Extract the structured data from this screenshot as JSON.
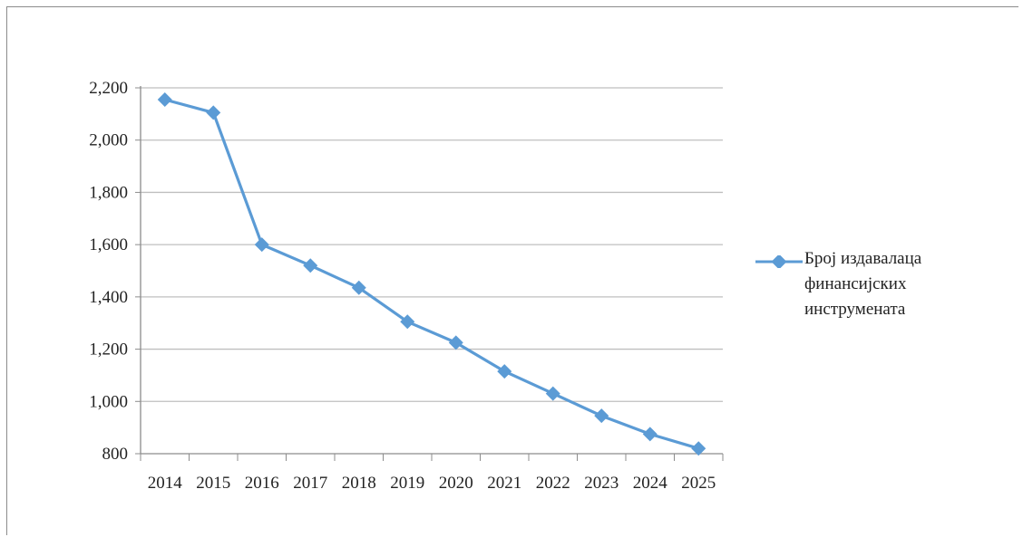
{
  "colors": {
    "series": "#5b9bd5",
    "grid": "#bfbfbf",
    "axis": "#8c8c8c"
  },
  "chart_data": {
    "type": "line",
    "x": [
      "2014",
      "2015",
      "2016",
      "2017",
      "2018",
      "2019",
      "2020",
      "2021",
      "2022",
      "2023",
      "2024",
      "2025"
    ],
    "series": [
      {
        "name": "Број издавалаца финансијских инструмената",
        "marker": "diamond",
        "values": [
          2155,
          2105,
          1600,
          1520,
          1435,
          1305,
          1225,
          1115,
          1030,
          945,
          875,
          820
        ]
      }
    ],
    "ylim": [
      800,
      2200
    ],
    "yticks": [
      800,
      1000,
      1200,
      1400,
      1600,
      1800,
      2000,
      2200
    ],
    "ytick_labels": [
      "800",
      "1,000",
      "1,200",
      "1,400",
      "1,600",
      "1,800",
      "2,000",
      "2,200"
    ],
    "grid": true,
    "legend_position": "right",
    "title": "",
    "xlabel": "",
    "ylabel": ""
  }
}
